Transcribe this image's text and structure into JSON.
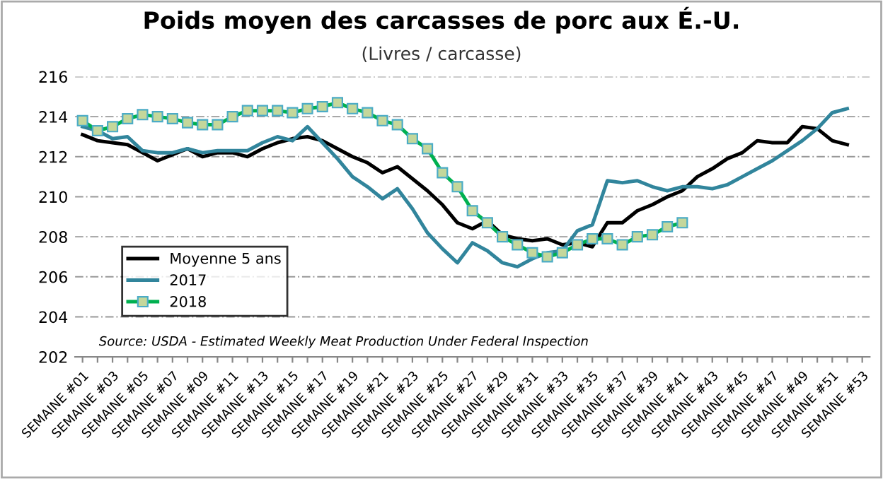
{
  "chart_data": {
    "type": "line",
    "title": "Poids moyen des carcasses de porc aux É.-U.",
    "subtitle": "(Livres / carcasse)",
    "categories": [
      "SEMAINE #01",
      null,
      "SEMAINE #03",
      null,
      "SEMAINE #05",
      null,
      "SEMAINE #07",
      null,
      "SEMAINE #09",
      null,
      "SEMAINE #11",
      null,
      "SEMAINE #13",
      null,
      "SEMAINE #15",
      null,
      "SEMAINE #17",
      null,
      "SEMAINE #19",
      null,
      "SEMAINE #21",
      null,
      "SEMAINE #23",
      null,
      "SEMAINE #25",
      null,
      "SEMAINE #27",
      null,
      "SEMAINE #29",
      null,
      "SEMAINE #31",
      null,
      "SEMAINE #33",
      null,
      "SEMAINE #35",
      null,
      "SEMAINE #37",
      null,
      "SEMAINE #39",
      null,
      "SEMAINE #41",
      null,
      "SEMAINE #43",
      null,
      "SEMAINE #45",
      null,
      "SEMAINE #47",
      null,
      "SEMAINE #49",
      null,
      "SEMAINE #51",
      null,
      "SEMAINE #53"
    ],
    "series": [
      {
        "name": "Moyenne 5 ans",
        "color": "#000000",
        "marker": "none",
        "values": [
          213.1,
          212.8,
          212.7,
          212.6,
          212.2,
          211.8,
          212.1,
          212.4,
          212.0,
          212.2,
          212.2,
          212.0,
          212.4,
          212.7,
          212.9,
          213.0,
          212.8,
          212.4,
          212.0,
          211.7,
          211.2,
          211.5,
          210.9,
          210.3,
          209.6,
          208.7,
          208.4,
          208.8,
          208.1,
          207.9,
          207.8,
          207.9,
          207.6,
          207.7,
          207.5,
          208.7,
          208.7,
          209.3,
          209.6,
          210.0,
          210.3,
          211.0,
          211.4,
          211.9,
          212.2,
          212.8,
          212.7,
          212.7,
          213.5,
          213.4,
          212.8,
          212.6,
          null
        ]
      },
      {
        "name": "2017",
        "color": "#31859c",
        "marker": "none",
        "values": [
          213.5,
          213.3,
          212.9,
          213.0,
          212.3,
          212.2,
          212.2,
          212.4,
          212.2,
          212.3,
          212.3,
          212.3,
          212.7,
          213.0,
          212.8,
          213.5,
          212.7,
          211.9,
          211.0,
          210.5,
          209.9,
          210.4,
          209.4,
          208.2,
          207.4,
          206.7,
          207.7,
          207.3,
          206.7,
          206.5,
          206.9,
          207.2,
          207.3,
          208.3,
          208.6,
          210.8,
          210.7,
          210.8,
          210.5,
          210.3,
          210.5,
          210.5,
          210.4,
          210.6,
          211.0,
          211.4,
          211.8,
          212.3,
          212.8,
          213.4,
          214.2,
          214.4,
          null
        ]
      },
      {
        "name": "2018",
        "color": "#00b050",
        "marker": "square",
        "values": [
          213.8,
          213.3,
          213.5,
          213.9,
          214.1,
          214.0,
          213.9,
          213.7,
          213.6,
          213.6,
          214.0,
          214.3,
          214.3,
          214.3,
          214.2,
          214.4,
          214.5,
          214.7,
          214.4,
          214.2,
          213.8,
          213.6,
          212.9,
          212.4,
          211.2,
          210.5,
          209.3,
          208.7,
          208.0,
          207.6,
          207.2,
          207.0,
          207.2,
          207.6,
          207.9,
          207.9,
          207.6,
          208.0,
          208.1,
          208.5,
          208.7,
          null,
          null,
          null,
          null,
          null,
          null,
          null,
          null,
          null,
          null,
          null,
          null
        ]
      }
    ],
    "ylim": [
      202,
      216
    ],
    "yticks": [
      202,
      204,
      206,
      208,
      210,
      212,
      214,
      216
    ],
    "grid": "y",
    "legend": "left",
    "annotations": [
      "Source: USDA - Estimated Weekly Meat Production Under Federal Inspection"
    ]
  }
}
